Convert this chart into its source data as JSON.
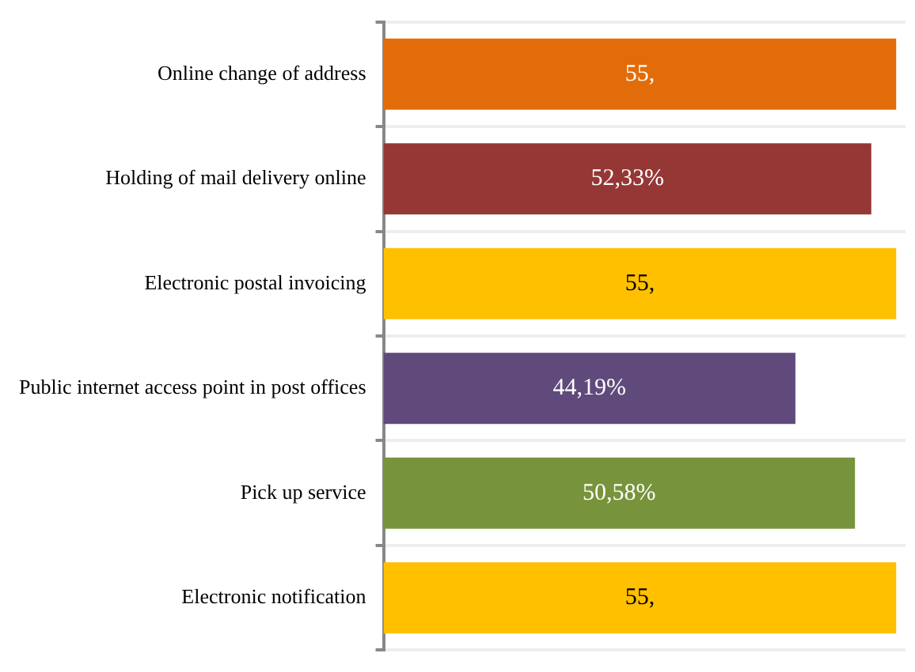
{
  "chart_data": {
    "type": "bar",
    "orientation": "horizontal",
    "categories": [
      "Online change of address",
      "Holding of mail delivery online",
      "Electronic postal invoicing",
      "Public internet access point in post offices",
      "Pick up service",
      "Electronic notification"
    ],
    "values": [
      55,
      52.33,
      55,
      44.19,
      50.58,
      55
    ],
    "colors": [
      "#e36c0a",
      "#953735",
      "#ffc000",
      "#604a7b",
      "#77933c",
      "#ffc000"
    ],
    "value_labels": [
      "55,",
      "52,33%",
      "55,",
      "44,19%",
      "50,58%",
      "55,"
    ],
    "xlim": [
      0,
      56
    ],
    "tick_labels": "y",
    "grid": "y",
    "legend": false
  }
}
